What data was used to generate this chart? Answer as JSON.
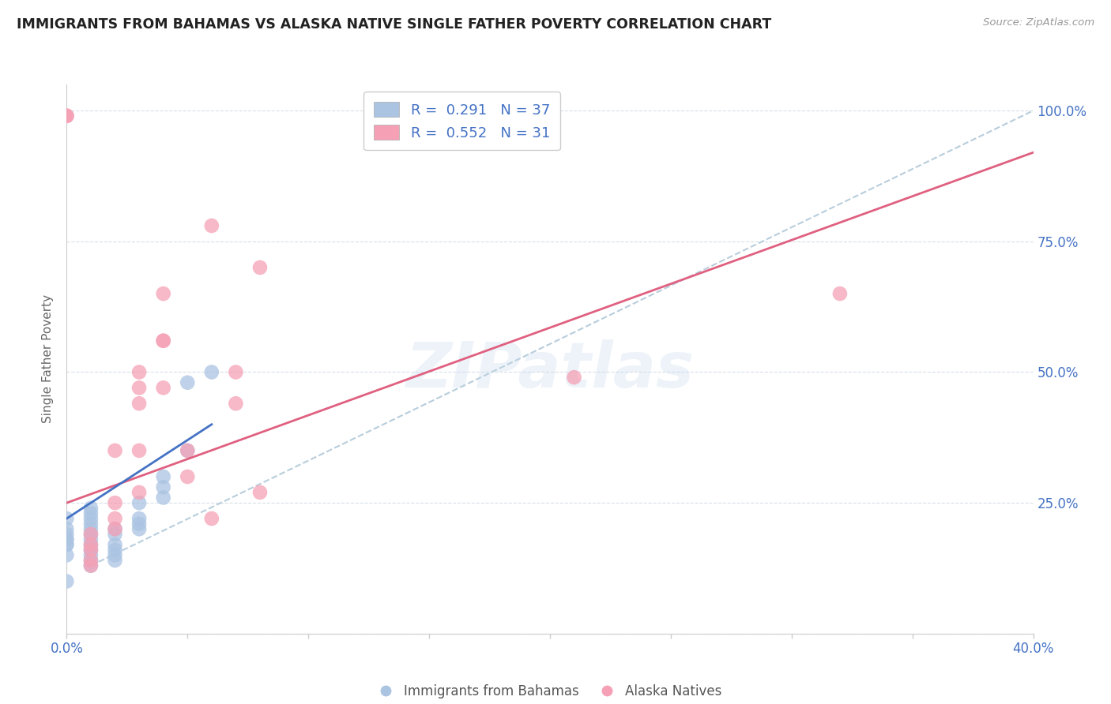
{
  "title": "IMMIGRANTS FROM BAHAMAS VS ALASKA NATIVE SINGLE FATHER POVERTY CORRELATION CHART",
  "source": "Source: ZipAtlas.com",
  "xlabel_label": "Immigrants from Bahamas",
  "ylabel_label": "Single Father Poverty",
  "blue_R": "0.291",
  "blue_N": "37",
  "pink_R": "0.552",
  "pink_N": "31",
  "blue_color": "#aac4e2",
  "pink_color": "#f5a0b5",
  "blue_line_color": "#4472C4",
  "pink_line_color": "#e06080",
  "dashed_line_color": "#b0c8d8",
  "watermark": "ZIPatlas",
  "blue_points_x": [
    0.0,
    0.0,
    0.0,
    0.0,
    0.0,
    0.0,
    0.0,
    0.0,
    0.0,
    0.001,
    0.001,
    0.001,
    0.001,
    0.001,
    0.001,
    0.001,
    0.001,
    0.001,
    0.001,
    0.001,
    0.001,
    0.002,
    0.002,
    0.002,
    0.002,
    0.002,
    0.002,
    0.003,
    0.003,
    0.003,
    0.003,
    0.004,
    0.004,
    0.004,
    0.005,
    0.005,
    0.006
  ],
  "blue_points_y": [
    0.1,
    0.15,
    0.17,
    0.17,
    0.18,
    0.18,
    0.19,
    0.2,
    0.22,
    0.13,
    0.14,
    0.15,
    0.16,
    0.17,
    0.18,
    0.19,
    0.2,
    0.21,
    0.22,
    0.23,
    0.24,
    0.14,
    0.15,
    0.16,
    0.17,
    0.19,
    0.2,
    0.2,
    0.21,
    0.22,
    0.25,
    0.26,
    0.28,
    0.3,
    0.35,
    0.48,
    0.5
  ],
  "pink_points_x": [
    0.0,
    0.0,
    0.0,
    0.001,
    0.001,
    0.001,
    0.001,
    0.001,
    0.002,
    0.002,
    0.002,
    0.002,
    0.003,
    0.003,
    0.003,
    0.003,
    0.003,
    0.004,
    0.004,
    0.004,
    0.004,
    0.005,
    0.005,
    0.006,
    0.006,
    0.007,
    0.007,
    0.008,
    0.008,
    0.021,
    0.032
  ],
  "pink_points_y": [
    0.99,
    0.99,
    0.99,
    0.13,
    0.14,
    0.16,
    0.17,
    0.19,
    0.2,
    0.22,
    0.25,
    0.35,
    0.27,
    0.35,
    0.44,
    0.47,
    0.5,
    0.47,
    0.56,
    0.56,
    0.65,
    0.3,
    0.35,
    0.22,
    0.78,
    0.44,
    0.5,
    0.27,
    0.7,
    0.49,
    0.65
  ],
  "xlim": [
    0.0,
    0.04
  ],
  "ylim": [
    0.0,
    1.05
  ],
  "blue_line_x": [
    0.0,
    0.006
  ],
  "blue_line_y": [
    0.22,
    0.4
  ],
  "pink_line_x": [
    0.0,
    0.04
  ],
  "pink_line_y": [
    0.25,
    0.92
  ],
  "dashed_line_x": [
    0.001,
    0.04
  ],
  "dashed_line_y": [
    0.13,
    1.0
  ],
  "background_color": "#ffffff",
  "grid_color": "#d8dfe8",
  "title_color": "#222222",
  "axis_color": "#4472C4",
  "ylabel_color": "#666666"
}
